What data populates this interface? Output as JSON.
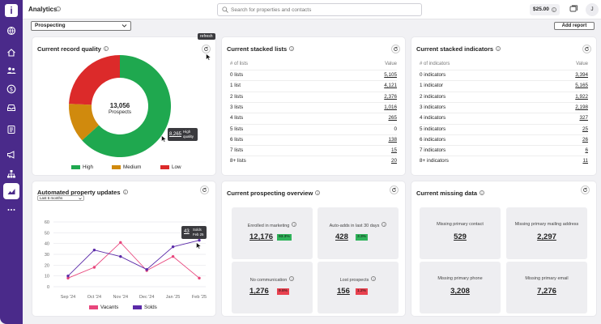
{
  "app": {
    "logo_letter": "i",
    "title": "Analytics",
    "search_placeholder": "Search for properties and contacts",
    "credit": "$25.00",
    "avatar": "J"
  },
  "sidebar": {
    "items": [
      {
        "icon": "globe-gear-icon"
      },
      {
        "icon": "home-icon"
      },
      {
        "icon": "people-icon"
      },
      {
        "icon": "dollar-icon"
      },
      {
        "icon": "inbox-icon"
      },
      {
        "icon": "list-icon"
      },
      {
        "icon": "megaphone-icon"
      },
      {
        "icon": "hierarchy-icon"
      },
      {
        "icon": "analytics-chart-icon",
        "active": true
      },
      {
        "icon": "more-icon"
      }
    ]
  },
  "toolbar": {
    "view_value": "Prospecting",
    "add_report_label": "Add report",
    "refresh_tooltip": "refresh"
  },
  "record_quality": {
    "title": "Current record quality",
    "center_value": "13,056",
    "center_label": "Prospects",
    "tooltip_value": "8,265",
    "tooltip_label_line1": "High",
    "tooltip_label_line2": "quality",
    "chart_data": {
      "type": "pie",
      "categories": [
        "High",
        "Medium",
        "Low"
      ],
      "values": [
        8265,
        1620,
        3171
      ],
      "colors": [
        "#1fa84f",
        "#d08a0d",
        "#dc2a2a"
      ]
    }
  },
  "stacked_lists": {
    "title": "Current stacked lists",
    "col_label": "# of lists",
    "col_value": "Value",
    "rows": [
      {
        "label": "0 lists",
        "value": "5,105"
      },
      {
        "label": "1 list",
        "value": "4,121"
      },
      {
        "label": "2 lists",
        "value": "2,376"
      },
      {
        "label": "3 lists",
        "value": "1,016"
      },
      {
        "label": "4 lists",
        "value": "265"
      },
      {
        "label": "5 lists",
        "value": "0"
      },
      {
        "label": "6 lists",
        "value": "138"
      },
      {
        "label": "7 lists",
        "value": "15"
      },
      {
        "label": "8+ lists",
        "value": "20"
      }
    ]
  },
  "stacked_indicators": {
    "title": "Current stacked indicators",
    "col_label": "# of indicators",
    "col_value": "Value",
    "rows": [
      {
        "label": "0 indicators",
        "value": "3,394"
      },
      {
        "label": "1 indicator",
        "value": "5,165"
      },
      {
        "label": "2 indicators",
        "value": "1,922"
      },
      {
        "label": "3 indicators",
        "value": "2,198"
      },
      {
        "label": "4 indicators",
        "value": "327"
      },
      {
        "label": "5 indicators",
        "value": "25"
      },
      {
        "label": "6 indicators",
        "value": "26"
      },
      {
        "label": "7 indicators",
        "value": "6"
      },
      {
        "label": "8+ indicators",
        "value": "11"
      }
    ]
  },
  "property_updates": {
    "title": "Automated property updates",
    "range_value": "Last 6 months",
    "tooltip_value": "43",
    "tooltip_line1": "Solds",
    "tooltip_line2": "Feb 25",
    "chart_data": {
      "type": "line",
      "categories": [
        "Sep '24",
        "Oct '24",
        "Nov '24",
        "Dec '24",
        "Jan '25",
        "Feb '25"
      ],
      "ylim": [
        0,
        60
      ],
      "yticks": [
        0,
        10,
        20,
        30,
        40,
        50,
        60
      ],
      "series": [
        {
          "name": "Vacants",
          "color": "#e8467c",
          "values": [
            8,
            18,
            41,
            15,
            28,
            8
          ]
        },
        {
          "name": "Solds",
          "color": "#5b2aa8",
          "values": [
            10,
            34,
            28,
            16,
            37,
            43
          ]
        }
      ]
    }
  },
  "prospecting_overview": {
    "title": "Current prospecting overview",
    "tiles": [
      {
        "label": "Enrolled in marketing",
        "value": "12,176",
        "badge": "93.3%",
        "badge_color": "#2fb35a"
      },
      {
        "label": "Auto-adds in last 30 days",
        "value": "428",
        "badge": "3.3%",
        "badge_color": "#2fb35a"
      },
      {
        "label": "No communication",
        "value": "1,276",
        "badge": "9.8%",
        "badge_color": "#e8414f"
      },
      {
        "label": "Lost prospects",
        "value": "156",
        "badge": "1.2%",
        "badge_color": "#e8414f"
      }
    ]
  },
  "missing_data": {
    "title": "Current missing data",
    "tiles": [
      {
        "label": "Missing primary contact",
        "value": "529"
      },
      {
        "label": "Missing primary mailing address",
        "value": "2,297"
      },
      {
        "label": "Missing primary phone",
        "value": "3,208"
      },
      {
        "label": "Missing primary email",
        "value": "7,276"
      }
    ]
  }
}
